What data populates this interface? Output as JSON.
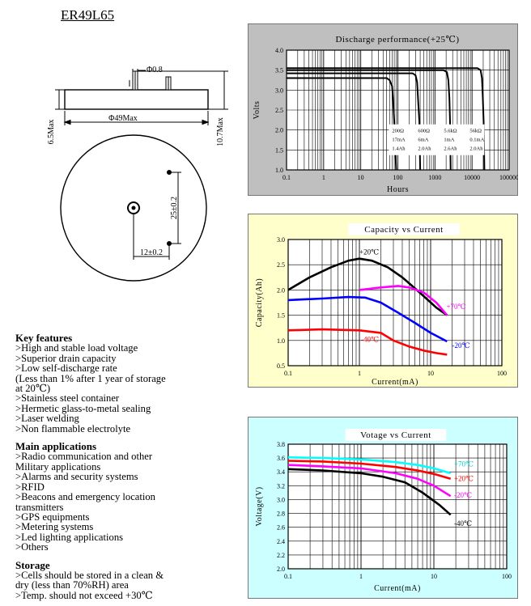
{
  "model": "ER49L65",
  "drawing": {
    "pin_dia": "Φ0.8",
    "body_dia": "Φ49Max",
    "height_body": "6.5Max",
    "height_total": "10.7Max",
    "pin_spacing": "25±0.2",
    "pin_offset": "12±0.2"
  },
  "sections": [
    {
      "title": "Key features",
      "lines": [
        ">High and stable load voltage",
        ">Superior drain capacity",
        ">Low self-discharge rate",
        "  (Less than 1% after 1 year of storage",
        "   at 20℃)",
        ">Stainless steel container",
        ">Hermetic glass-to-metal sealing",
        ">Laser welding",
        ">Non flammable electrolyte"
      ]
    },
    {
      "title": "Main applications",
      "lines": [
        ">Radio communication and other",
        " Military applications",
        ">Alarms and security systems",
        ">RFID",
        ">Beacons and emergency location",
        " transmitters",
        ">GPS equipments",
        ">Metering systems",
        ">Led lighting applications",
        ">Others"
      ]
    },
    {
      "title": "Storage",
      "lines": [
        ">Cells should be stored in a clean &",
        " dry (less than 70%RH) area",
        ">Temp. should not exceed +30℃"
      ]
    }
  ],
  "colors": {
    "panel1_bg": "#bfbfbf",
    "panel2_bg": "#ffffcc",
    "panel3_bg": "#ccffff",
    "black": "#000000",
    "blue": "#0000ff",
    "red": "#ff0000",
    "magenta": "#ff00ff",
    "cyan": "#00ffff"
  },
  "chart_data": [
    {
      "type": "line",
      "title": "Discharge performance(+25℃)",
      "xlabel": "Hours",
      "ylabel": "Volts",
      "xscale": "log",
      "xlim": [
        0.1,
        100000
      ],
      "ylim": [
        1.0,
        4.0
      ],
      "xticks": [
        "0.1",
        "1",
        "10",
        "100",
        "1000",
        "10000",
        "100000"
      ],
      "yticks": [
        "1.0",
        "1.5",
        "2.0",
        "2.5",
        "3.0",
        "3.5",
        "4.0"
      ],
      "grid": true,
      "legend_table": [
        [
          "200Ω",
          "600Ω",
          "5.6kΩ",
          "56kΩ"
        ],
        [
          "17mA",
          "6mA",
          "1mA",
          "0.1mA"
        ],
        [
          "1.4Ah",
          "2.0Ah",
          "2.6Ah",
          "2.0Ah"
        ]
      ],
      "series": [
        {
          "color": "#000000",
          "x": [
            0.1,
            50,
            60,
            70,
            75,
            80,
            90
          ],
          "y": [
            3.3,
            3.3,
            3.25,
            3.1,
            2.7,
            2.2,
            1.0
          ]
        },
        {
          "color": "#000000",
          "x": [
            0.1,
            250,
            300,
            330,
            350,
            380,
            400
          ],
          "y": [
            3.42,
            3.42,
            3.37,
            3.2,
            2.8,
            2.2,
            1.0
          ]
        },
        {
          "color": "#000000",
          "x": [
            0.1,
            1700,
            2100,
            2300,
            2450,
            2550,
            2650
          ],
          "y": [
            3.5,
            3.5,
            3.45,
            3.25,
            2.8,
            2.2,
            1.0
          ]
        },
        {
          "color": "#000000",
          "x": [
            0.1,
            14000,
            17000,
            18500,
            19500,
            20500,
            21500
          ],
          "y": [
            3.55,
            3.55,
            3.5,
            3.3,
            2.8,
            2.2,
            1.0
          ]
        }
      ]
    },
    {
      "type": "line",
      "title": "Capacity vs Current",
      "xlabel": "Current(mA)",
      "ylabel": "Capacity(Ah)",
      "xscale": "log",
      "xlim": [
        0.1,
        100
      ],
      "ylim": [
        0.5,
        3.0
      ],
      "xticks": [
        "0.1",
        "1",
        "10",
        "100"
      ],
      "yticks": [
        "0.5",
        "1.0",
        "1.5",
        "2.0",
        "2.5",
        "3.0"
      ],
      "grid": true,
      "series": [
        {
          "name": "+20℃",
          "color": "#000000",
          "x": [
            0.1,
            0.2,
            0.4,
            0.7,
            1.0,
            1.5,
            2.5,
            4,
            7,
            12,
            17
          ],
          "y": [
            2.0,
            2.25,
            2.45,
            2.58,
            2.62,
            2.58,
            2.45,
            2.25,
            1.95,
            1.65,
            1.5
          ]
        },
        {
          "name": "+70℃",
          "color": "#ff00ff",
          "x": [
            1.0,
            2.0,
            3.5,
            5,
            8,
            12,
            17
          ],
          "y": [
            2.0,
            2.05,
            2.08,
            2.05,
            1.95,
            1.75,
            1.5
          ]
        },
        {
          "name": "-20℃",
          "color": "#0000ff",
          "x": [
            0.1,
            0.3,
            0.7,
            1.2,
            2,
            3.5,
            6,
            10,
            17
          ],
          "y": [
            1.8,
            1.83,
            1.86,
            1.85,
            1.75,
            1.55,
            1.35,
            1.15,
            0.98
          ]
        },
        {
          "name": "-40℃",
          "color": "#ff0000",
          "x": [
            0.1,
            0.3,
            1.0,
            2.0,
            3.0,
            5,
            8,
            12,
            17
          ],
          "y": [
            1.2,
            1.22,
            1.2,
            1.15,
            1.0,
            0.88,
            0.8,
            0.75,
            0.72
          ]
        }
      ]
    },
    {
      "type": "line",
      "title": "Votage vs Current",
      "xlabel": "Current(mA)",
      "ylabel": "Voltage(V)",
      "xscale": "log",
      "xlim": [
        0.1,
        100
      ],
      "ylim": [
        2.0,
        3.8
      ],
      "xticks": [
        "0.1",
        "1",
        "10",
        "100"
      ],
      "yticks": [
        "2.0",
        "2.2",
        "2.4",
        "2.6",
        "2.8",
        "3.0",
        "3.2",
        "3.4",
        "3.6",
        "3.8"
      ],
      "grid": true,
      "series": [
        {
          "name": "+70℃",
          "color": "#00ffff",
          "x": [
            0.1,
            0.3,
            1.0,
            3,
            6,
            10,
            17
          ],
          "y": [
            3.61,
            3.6,
            3.58,
            3.54,
            3.5,
            3.45,
            3.38
          ]
        },
        {
          "name": "+20℃",
          "color": "#ff0000",
          "x": [
            0.1,
            0.3,
            1.0,
            3,
            6,
            10,
            17
          ],
          "y": [
            3.56,
            3.55,
            3.52,
            3.47,
            3.42,
            3.37,
            3.3
          ]
        },
        {
          "name": "-20℃",
          "color": "#ff00ff",
          "x": [
            0.1,
            0.3,
            1.0,
            3,
            6,
            10,
            17
          ],
          "y": [
            3.5,
            3.48,
            3.45,
            3.38,
            3.3,
            3.2,
            3.05
          ]
        },
        {
          "name": "-40℃",
          "color": "#000000",
          "x": [
            0.1,
            0.3,
            1.0,
            2,
            4,
            7,
            12,
            17
          ],
          "y": [
            3.44,
            3.42,
            3.38,
            3.33,
            3.25,
            3.1,
            2.92,
            2.78
          ]
        }
      ]
    }
  ]
}
